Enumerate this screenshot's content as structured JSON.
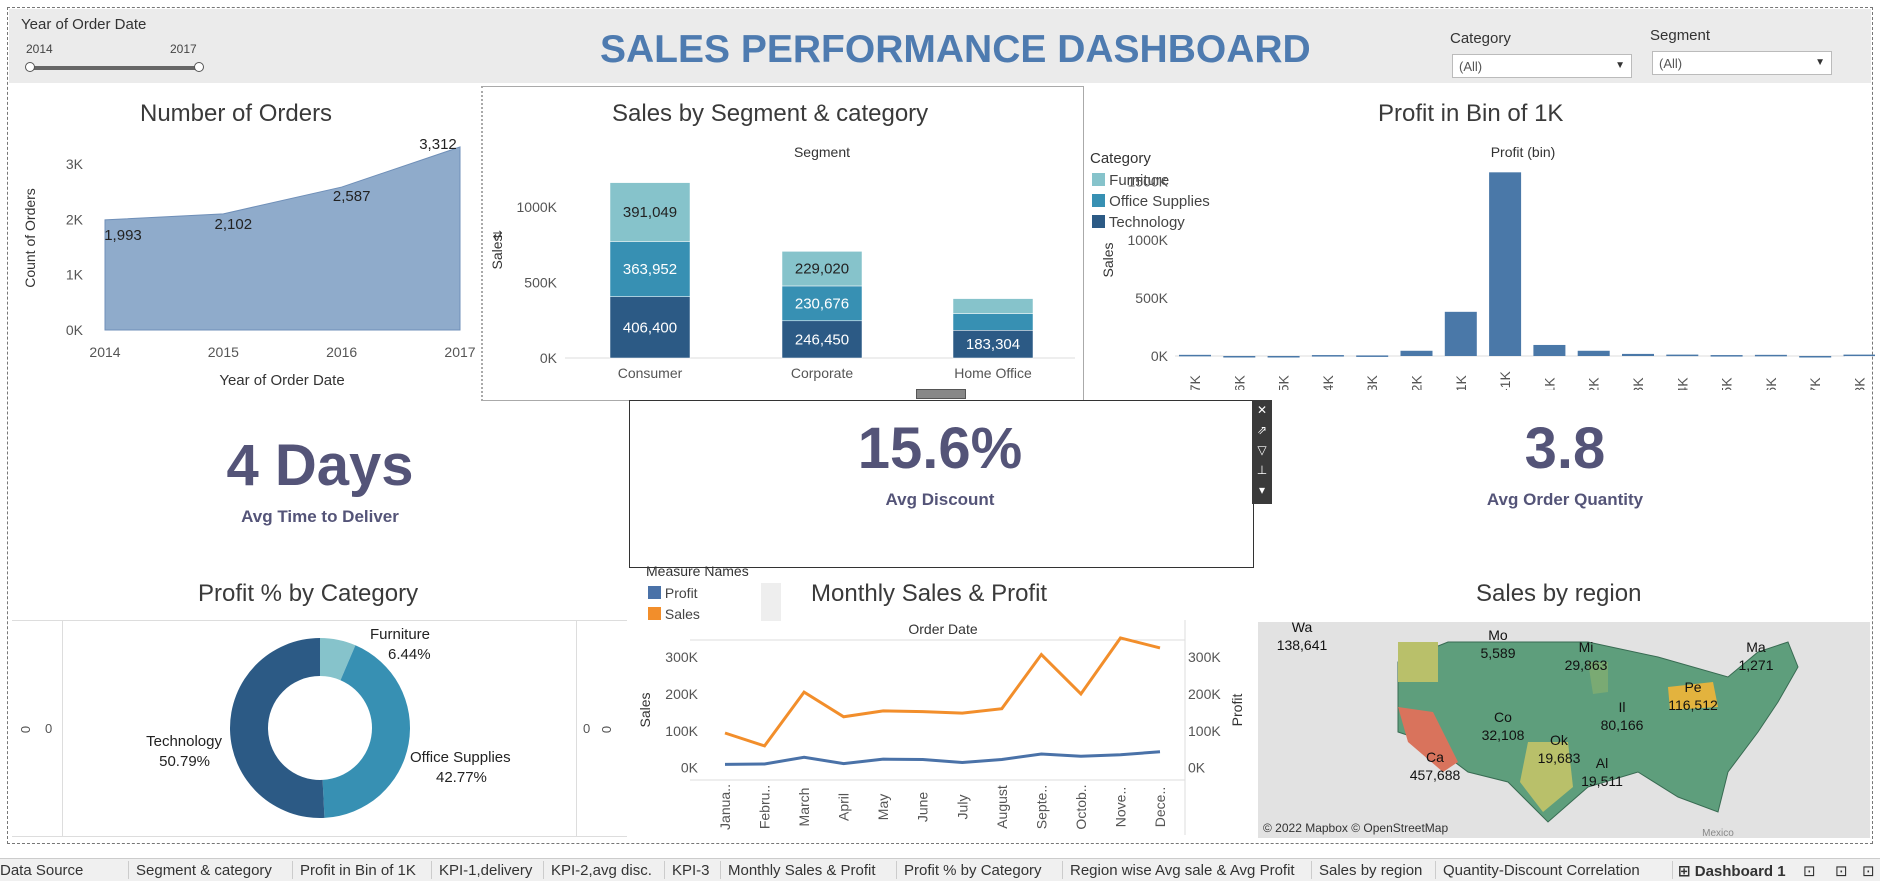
{
  "header": {
    "year_filter_label": "Year of Order Date",
    "year_min": "2014",
    "year_max": "2017",
    "dashboard_title": "SALES PERFORMANCE DASHBOARD",
    "category_label": "Category",
    "category_value": "(All)",
    "segment_label": "Segment",
    "segment_value": "(All)"
  },
  "colors": {
    "title": "#4e7bb0",
    "kpi": "#545478",
    "furniture": "#86c3cb",
    "office": "#3790b3",
    "technology": "#2c5a85",
    "profit_line": "#4a72a8",
    "sales_line": "#f28e2b",
    "area": "#8fabcb",
    "bar": "#4a78a8"
  },
  "orders": {
    "title": "Number of Orders",
    "ylabel": "Count of Orders",
    "xlabel": "Year of Order Date",
    "yticks": [
      "3K",
      "2K",
      "1K",
      "0K"
    ],
    "chart_data": {
      "type": "area",
      "x": [
        "2014",
        "2015",
        "2016",
        "2017"
      ],
      "values": [
        1993,
        2102,
        2587,
        3312
      ],
      "labels": [
        "1,993",
        "2,102",
        "2,587",
        "3,312"
      ],
      "ylim": [
        0,
        3312
      ]
    }
  },
  "segment": {
    "title": "Sales by Segment & category",
    "header": "Segment",
    "ylabel": "Sales",
    "yticks": [
      "1000K",
      "500K",
      "0K"
    ],
    "legend_title": "Category",
    "legend": [
      "Furniture",
      "Office Supplies",
      "Technology"
    ],
    "chart_data": {
      "type": "bar",
      "categories": [
        "Consumer",
        "Corporate",
        "Home Office"
      ],
      "series": [
        {
          "name": "Technology",
          "values": [
            406400,
            246450,
            183304
          ],
          "labels": [
            "406,400",
            "246,450",
            "183,304"
          ]
        },
        {
          "name": "Office Supplies",
          "values": [
            363952,
            230676,
            0
          ],
          "labels": [
            "363,952",
            "230,676",
            ""
          ]
        },
        {
          "name": "Furniture",
          "values": [
            391049,
            229020,
            0
          ],
          "labels": [
            "391,049",
            "229,020",
            ""
          ]
        }
      ]
    }
  },
  "profit_bin": {
    "title": "Profit in Bin of 1K",
    "header": "Profit (bin)",
    "ylabel": "Sales",
    "yticks": [
      "1500K",
      "1000K",
      "500K",
      "0K"
    ],
    "chart_data": {
      "type": "bar",
      "categories": [
        "-7K",
        "-6K",
        "-5K",
        "-4K",
        "-3K",
        "-2K",
        "-1K",
        "0-1K",
        "1K",
        "2K",
        "3K",
        "4K",
        "5K",
        "6K",
        "7K",
        "8K"
      ],
      "values": [
        10000,
        0,
        0,
        8000,
        5000,
        45000,
        380000,
        1580000,
        95000,
        45000,
        18000,
        12000,
        8000,
        10000,
        0,
        12000
      ],
      "ylim": [
        0,
        1600000
      ]
    }
  },
  "kpis": {
    "deliver_value": "4 Days",
    "deliver_label": "Avg Time to Deliver",
    "discount_value": "15.6%",
    "discount_label": "Avg Discount",
    "qty_value": "3.8",
    "qty_label": "Avg Order Quantity"
  },
  "profit_pct": {
    "title": "Profit % by Category",
    "axis_zero": "0",
    "chart_data": {
      "type": "pie",
      "categories": [
        "Furniture",
        "Office Supplies",
        "Technology"
      ],
      "values": [
        6.44,
        42.77,
        50.79
      ],
      "labels": [
        "6.44%",
        "42.77%",
        "50.79%"
      ]
    }
  },
  "monthly": {
    "title": "Monthly Sales & Profit",
    "header": "Order Date",
    "legend_title": "Measure Names",
    "legend": [
      "Profit",
      "Sales"
    ],
    "ylabel_left": "Sales",
    "ylabel_right": "Profit",
    "yticks": [
      "300K",
      "200K",
      "100K",
      "0K"
    ],
    "chart_data": {
      "type": "line",
      "x": [
        "Janua..",
        "Febru..",
        "March",
        "April",
        "May",
        "June",
        "July",
        "August",
        "Septe..",
        "Octob..",
        "Nove..",
        "Dece.."
      ],
      "series": [
        {
          "name": "Sales",
          "values": [
            94000,
            59000,
            205000,
            138000,
            154000,
            152000,
            148000,
            160000,
            307000,
            200000,
            352000,
            325000
          ]
        },
        {
          "name": "Profit",
          "values": [
            9000,
            10000,
            28000,
            11000,
            23000,
            22000,
            14000,
            22000,
            37000,
            31000,
            35000,
            43000
          ]
        }
      ],
      "ylim": [
        -20000,
        360000
      ]
    }
  },
  "region": {
    "title": "Sales by region",
    "attribution": "© 2022 Mapbox © OpenStreetMap",
    "mexico": "Mexico",
    "labels": [
      {
        "state": "Wa",
        "value": "138,641"
      },
      {
        "state": "Mo",
        "value": "5,589"
      },
      {
        "state": "Mi",
        "value": "29,863"
      },
      {
        "state": "Ma",
        "value": "1,271"
      },
      {
        "state": "Pe",
        "value": "116,512"
      },
      {
        "state": "Il",
        "value": "80,166"
      },
      {
        "state": "Co",
        "value": "32,108"
      },
      {
        "state": "Ca",
        "value": "457,688"
      },
      {
        "state": "Ok",
        "value": "19,683"
      },
      {
        "state": "Al",
        "value": "19,511"
      }
    ]
  },
  "tabs": [
    "Data Source",
    "Segment & category",
    "Profit in Bin of 1K",
    "KPI-1,delivery",
    "KPI-2,avg disc.",
    "KPI-3",
    "Monthly Sales & Profit",
    "Profit % by Category",
    "Region wise Avg sale & Avg Profit",
    "Sales by region",
    "Quantity-Discount Correlation",
    "Dashboard 1"
  ]
}
